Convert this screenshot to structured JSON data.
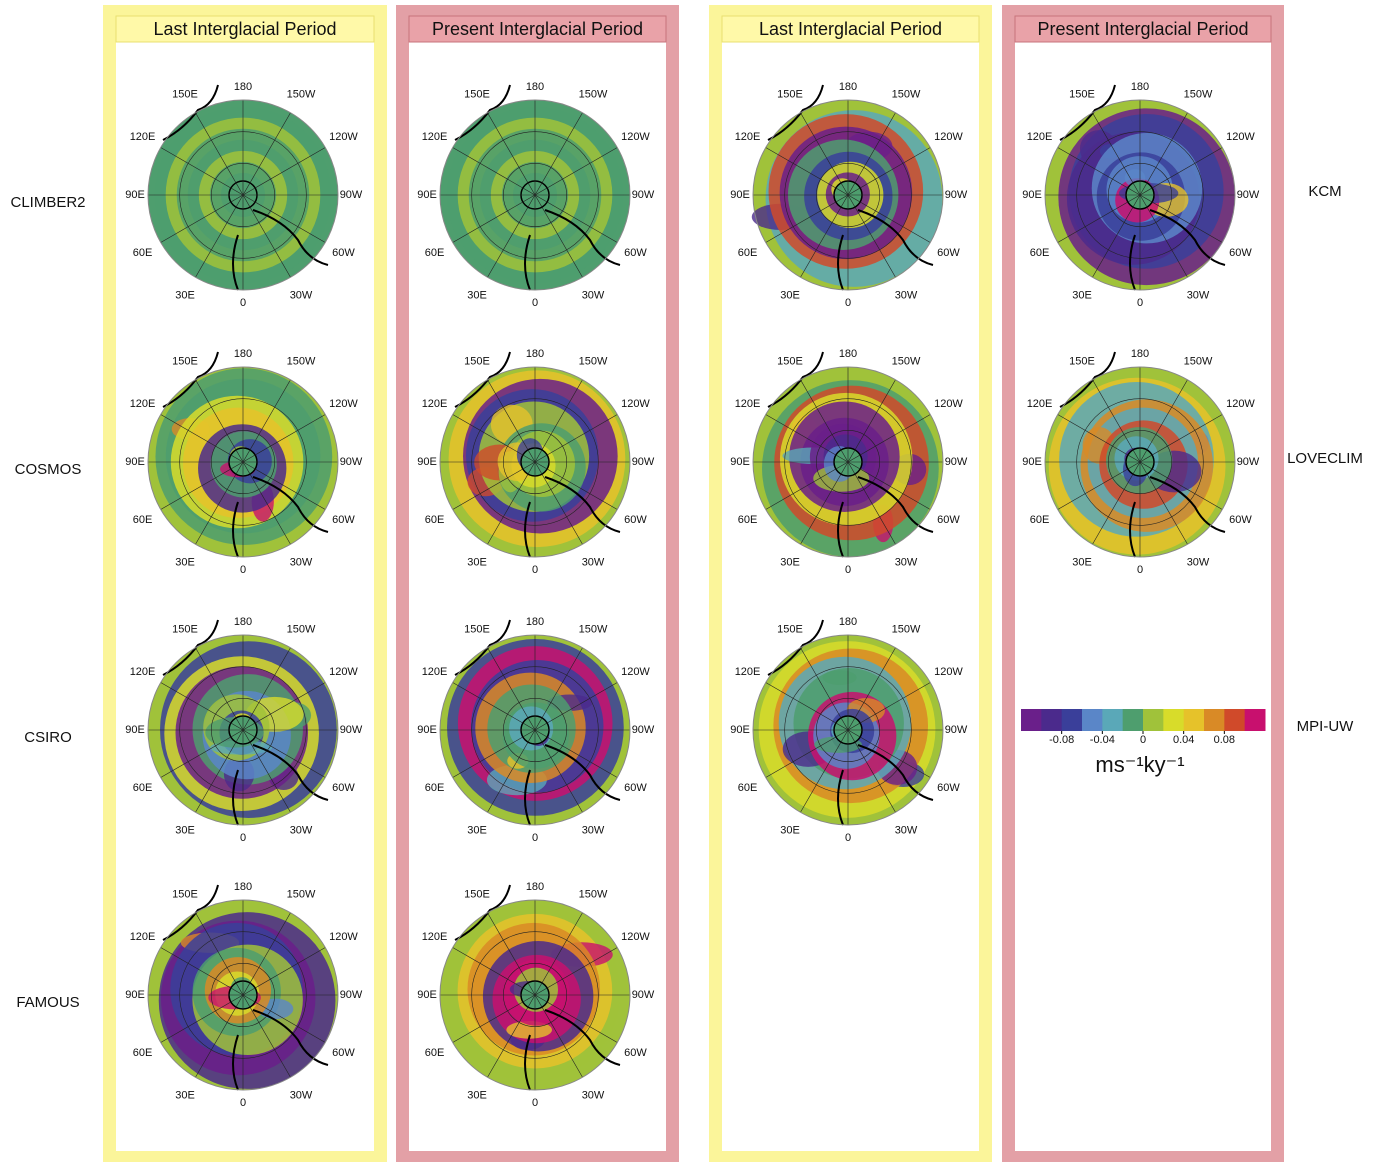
{
  "columns": [
    {
      "title": "Last Interglacial Period"
    },
    {
      "title": "Present Interglacial Period"
    },
    {
      "title": "Last Interglacial Period"
    },
    {
      "title": "Present Interglacial Period"
    }
  ],
  "left_models": [
    "CLIMBER2",
    "COSMOS",
    "CSIRO",
    "FAMOUS"
  ],
  "right_models": [
    "KCM",
    "LOVECLIM",
    "MPI-UW"
  ],
  "map": {
    "lon_labels": [
      "180",
      "150W",
      "120W",
      "90W",
      "60W",
      "30W",
      "0",
      "30E",
      "60E",
      "90E",
      "120E",
      "150E"
    ]
  },
  "colorbar": {
    "colors": [
      "#6a1f8a",
      "#4b2a8c",
      "#3a3f9a",
      "#5a86c8",
      "#5aa8b8",
      "#4e9e6e",
      "#a0c23a",
      "#d8dc2a",
      "#e6c22a",
      "#d98a26",
      "#d04a2a",
      "#c8106e"
    ],
    "lim": [
      -0.12,
      0.12
    ],
    "ticks": [
      -0.08,
      -0.04,
      0,
      0.04,
      0.08
    ],
    "unit": "ms⁻¹ky⁻¹"
  }
}
